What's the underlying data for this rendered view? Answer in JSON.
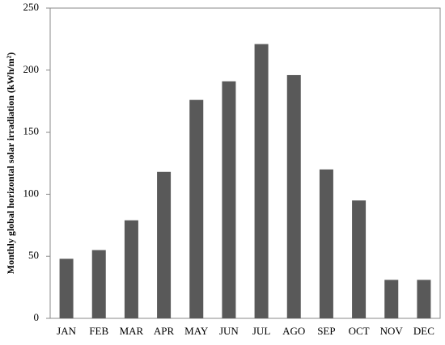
{
  "chart_data": {
    "type": "bar",
    "y_label": "Monthly global horizontal solar irradiation (kWh/m²)",
    "categories": [
      "JAN",
      "FEB",
      "MAR",
      "APR",
      "MAY",
      "JUN",
      "JUL",
      "AGO",
      "SEP",
      "OCT",
      "NOV",
      "DEC"
    ],
    "values": [
      48,
      55,
      79,
      118,
      176,
      191,
      221,
      196,
      120,
      95,
      31,
      31
    ],
    "color": "#595959",
    "ylim": [
      0,
      250
    ],
    "yticks": [
      0,
      50,
      100,
      150,
      200,
      250
    ],
    "grid": false
  }
}
